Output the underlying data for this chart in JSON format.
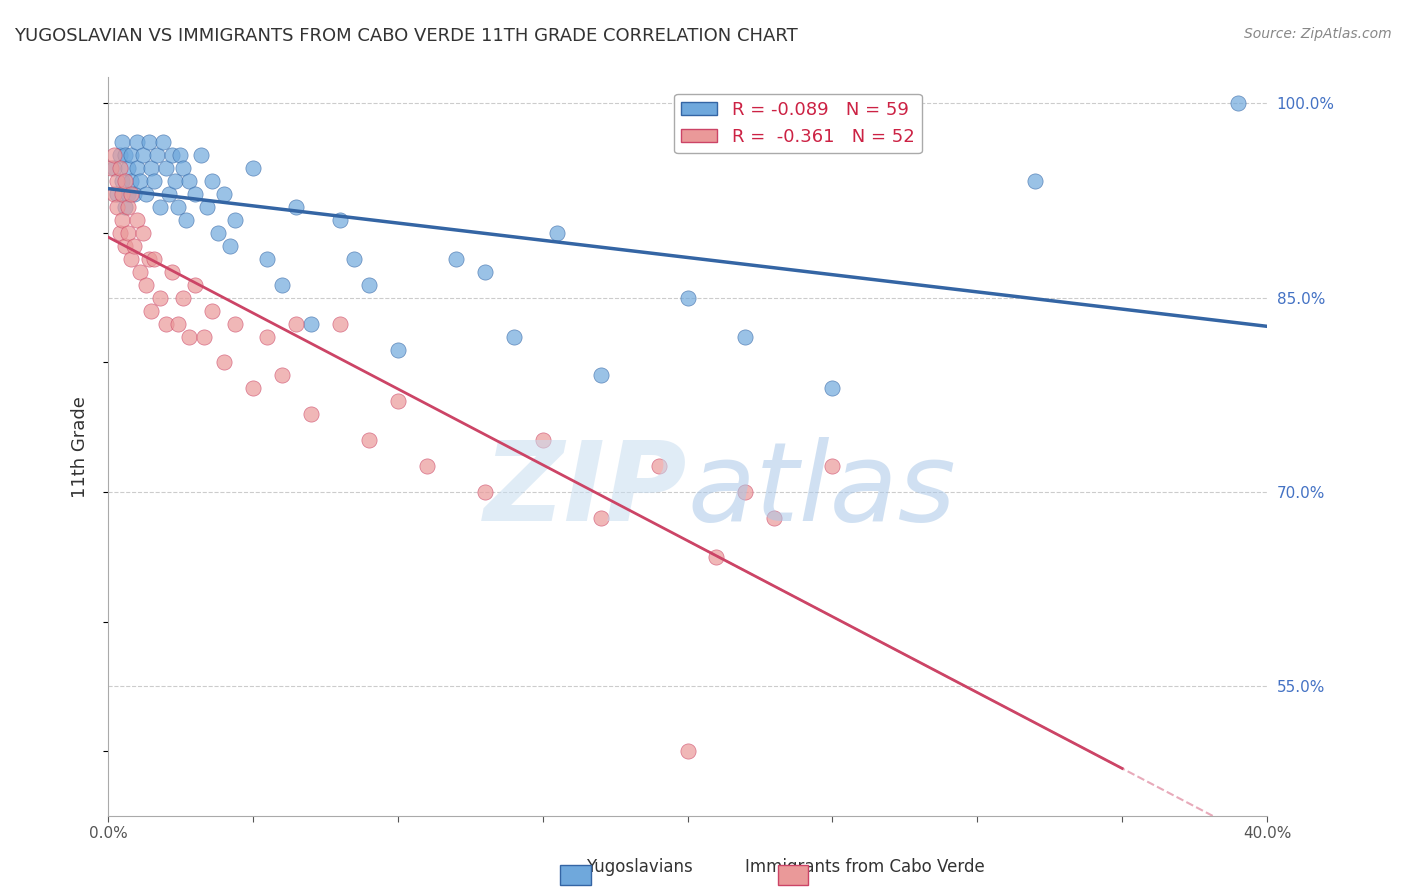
{
  "title": "YUGOSLAVIAN VS IMMIGRANTS FROM CABO VERDE 11TH GRADE CORRELATION CHART",
  "source": "Source: ZipAtlas.com",
  "ylabel": "11th Grade",
  "xlim": [
    0.0,
    0.4
  ],
  "ylim": [
    0.45,
    1.02
  ],
  "yticks": [
    0.55,
    0.7,
    0.85,
    1.0
  ],
  "ytick_labels": [
    "55.0%",
    "70.0%",
    "85.0%",
    "100.0%"
  ],
  "xticks": [
    0.0,
    0.05,
    0.1,
    0.15,
    0.2,
    0.25,
    0.3,
    0.35,
    0.4
  ],
  "xtick_labels": [
    "0.0%",
    "",
    "",
    "",
    "",
    "",
    "",
    "",
    "40.0%"
  ],
  "blue_R": -0.089,
  "blue_N": 59,
  "pink_R": -0.361,
  "pink_N": 52,
  "blue_color": "#6fa8dc",
  "pink_color": "#ea9999",
  "blue_line_color": "#3465a4",
  "pink_line_color": "#cc4466",
  "blue_scatter_x": [
    0.002,
    0.003,
    0.004,
    0.005,
    0.005,
    0.006,
    0.006,
    0.007,
    0.007,
    0.008,
    0.008,
    0.009,
    0.01,
    0.01,
    0.011,
    0.012,
    0.013,
    0.014,
    0.015,
    0.016,
    0.017,
    0.018,
    0.019,
    0.02,
    0.021,
    0.022,
    0.023,
    0.024,
    0.025,
    0.026,
    0.027,
    0.028,
    0.03,
    0.032,
    0.034,
    0.036,
    0.038,
    0.04,
    0.042,
    0.044,
    0.05,
    0.055,
    0.06,
    0.065,
    0.07,
    0.08,
    0.085,
    0.09,
    0.1,
    0.12,
    0.13,
    0.14,
    0.155,
    0.17,
    0.2,
    0.22,
    0.25,
    0.32,
    0.39
  ],
  "blue_scatter_y": [
    0.95,
    0.93,
    0.96,
    0.94,
    0.97,
    0.92,
    0.96,
    0.93,
    0.95,
    0.94,
    0.96,
    0.93,
    0.97,
    0.95,
    0.94,
    0.96,
    0.93,
    0.97,
    0.95,
    0.94,
    0.96,
    0.92,
    0.97,
    0.95,
    0.93,
    0.96,
    0.94,
    0.92,
    0.96,
    0.95,
    0.91,
    0.94,
    0.93,
    0.96,
    0.92,
    0.94,
    0.9,
    0.93,
    0.89,
    0.91,
    0.95,
    0.88,
    0.86,
    0.92,
    0.83,
    0.91,
    0.88,
    0.86,
    0.81,
    0.88,
    0.87,
    0.82,
    0.9,
    0.79,
    0.85,
    0.82,
    0.78,
    0.94,
    1.0
  ],
  "pink_scatter_x": [
    0.001,
    0.002,
    0.002,
    0.003,
    0.003,
    0.004,
    0.004,
    0.005,
    0.005,
    0.006,
    0.006,
    0.007,
    0.007,
    0.008,
    0.008,
    0.009,
    0.01,
    0.011,
    0.012,
    0.013,
    0.014,
    0.015,
    0.016,
    0.018,
    0.02,
    0.022,
    0.024,
    0.026,
    0.028,
    0.03,
    0.033,
    0.036,
    0.04,
    0.044,
    0.05,
    0.055,
    0.06,
    0.065,
    0.07,
    0.08,
    0.09,
    0.1,
    0.11,
    0.13,
    0.15,
    0.17,
    0.19,
    0.2,
    0.21,
    0.22,
    0.23,
    0.25
  ],
  "pink_scatter_y": [
    0.95,
    0.93,
    0.96,
    0.92,
    0.94,
    0.9,
    0.95,
    0.91,
    0.93,
    0.89,
    0.94,
    0.9,
    0.92,
    0.88,
    0.93,
    0.89,
    0.91,
    0.87,
    0.9,
    0.86,
    0.88,
    0.84,
    0.88,
    0.85,
    0.83,
    0.87,
    0.83,
    0.85,
    0.82,
    0.86,
    0.82,
    0.84,
    0.8,
    0.83,
    0.78,
    0.82,
    0.79,
    0.83,
    0.76,
    0.83,
    0.74,
    0.77,
    0.72,
    0.7,
    0.74,
    0.68,
    0.72,
    0.5,
    0.65,
    0.7,
    0.68,
    0.72
  ]
}
